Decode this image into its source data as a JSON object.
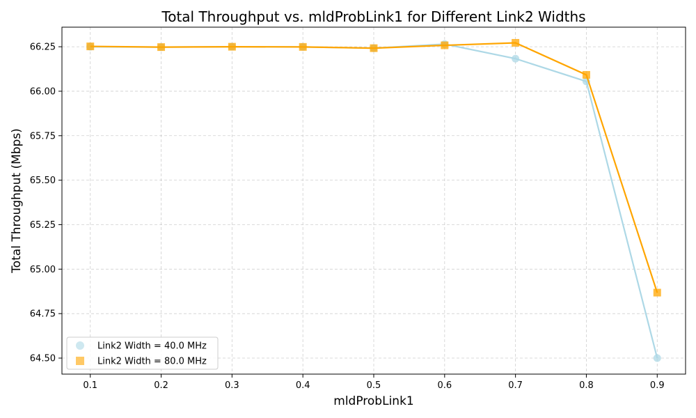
{
  "chart_data": {
    "type": "line",
    "title": "Total Throughput vs. mldProbLink1 for Different Link2 Widths",
    "xlabel": "mldProbLink1",
    "ylabel": "Total Throughput (Mbps)",
    "x": [
      0.1,
      0.2,
      0.3,
      0.4,
      0.5,
      0.6,
      0.7,
      0.8,
      0.9
    ],
    "xlim": [
      0.06,
      0.94
    ],
    "ylim": [
      64.41,
      66.36
    ],
    "xticks": [
      "0.1",
      "0.2",
      "0.3",
      "0.4",
      "0.5",
      "0.6",
      "0.7",
      "0.8",
      "0.9"
    ],
    "yticks": [
      "64.50",
      "64.75",
      "65.00",
      "65.25",
      "65.50",
      "65.75",
      "66.00",
      "66.25"
    ],
    "ytick_values": [
      64.5,
      64.75,
      65.0,
      65.25,
      65.5,
      65.75,
      66.0,
      66.25
    ],
    "grid": true,
    "legend_position": "lower-left",
    "series": [
      {
        "name": "Link2 Width = 40.0 MHz",
        "values": [
          66.25,
          66.248,
          66.25,
          66.249,
          66.242,
          66.265,
          66.183,
          66.055,
          64.5
        ],
        "line_color": "#add8e6",
        "marker": "circle"
      },
      {
        "name": "Link2 Width = 80.0 MHz",
        "values": [
          66.252,
          66.248,
          66.25,
          66.249,
          66.242,
          66.258,
          66.272,
          66.092,
          64.868
        ],
        "line_color": "#ffa500",
        "marker": "square"
      }
    ]
  }
}
